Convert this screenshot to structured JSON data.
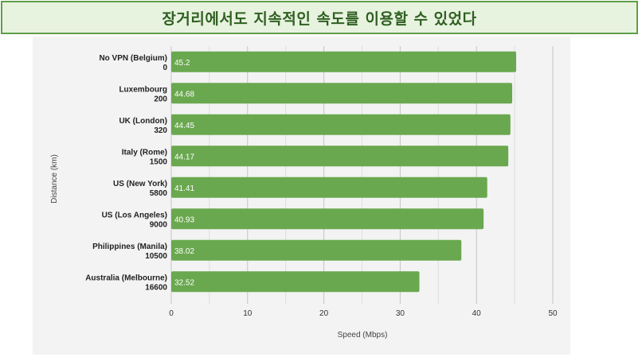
{
  "banner": {
    "title": "장거리에서도 지속적인 속도를 이용할 수 있었다"
  },
  "colors": {
    "bar": "#6aa84f",
    "grid": "#cccccc",
    "banner_border": "#5f9e4a",
    "banner_bg": "#e7f3df",
    "panel_bg": "#f3f3f3"
  },
  "chart_data": {
    "type": "bar",
    "orientation": "horizontal",
    "title": "",
    "xlabel": "Speed (Mbps)",
    "ylabel": "Distance (km)",
    "xlim": [
      0,
      50
    ],
    "xticks": [
      0,
      10,
      20,
      30,
      40,
      50
    ],
    "grid": true,
    "legend": "none",
    "categories": [
      [
        "No VPN (Belgium)",
        "0"
      ],
      [
        "Luxembourg",
        "200"
      ],
      [
        "UK (London)",
        "320"
      ],
      [
        "Italy (Rome)",
        "1500"
      ],
      [
        "US (New York)",
        "5800"
      ],
      [
        "US (Los Angeles)",
        "9000"
      ],
      [
        "Philippines (Manila)",
        "10500"
      ],
      [
        "Australia (Melbourne)",
        "16600"
      ]
    ],
    "values": [
      45.2,
      44.68,
      44.45,
      44.17,
      41.41,
      40.93,
      38.02,
      32.52
    ],
    "data_labels": [
      "45.2",
      "44.68",
      "44.45",
      "44.17",
      "41.41",
      "40.93",
      "38.02",
      "32.52"
    ]
  }
}
